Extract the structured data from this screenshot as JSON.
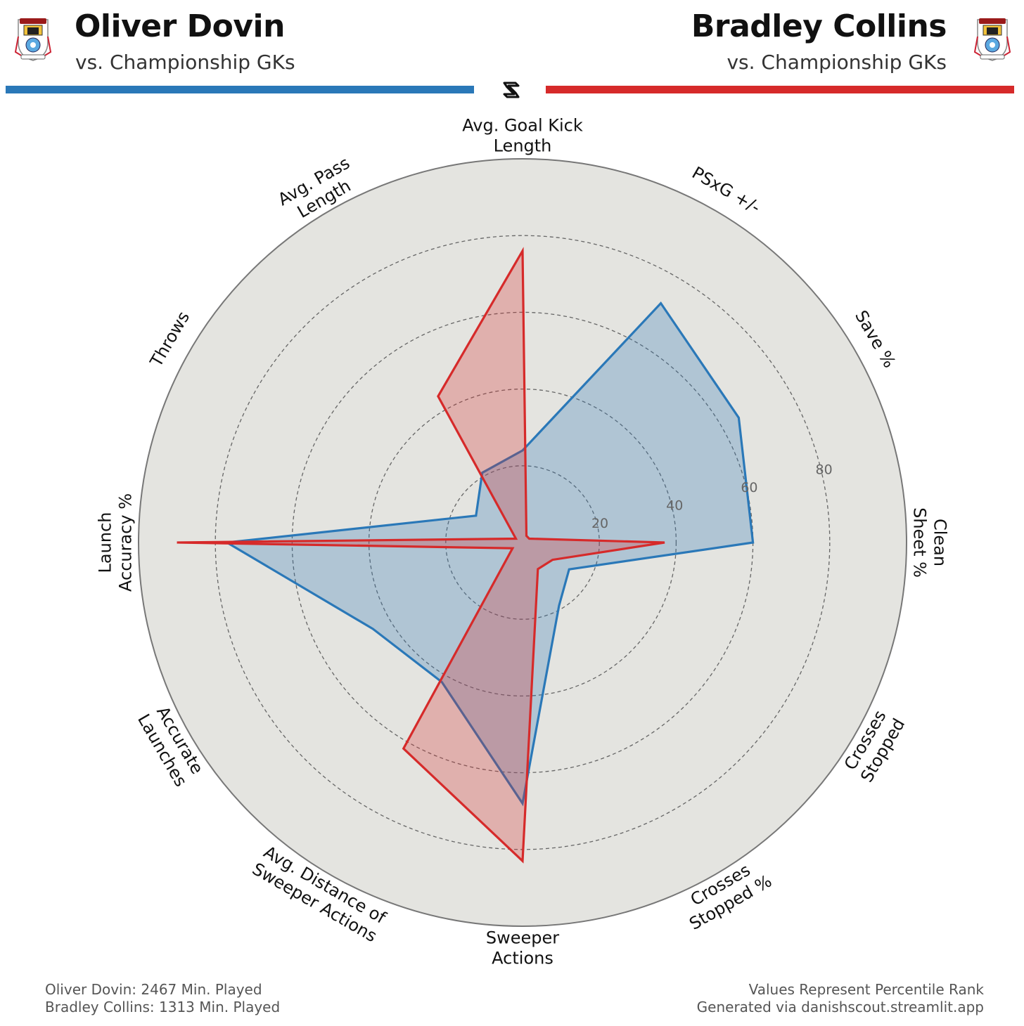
{
  "header": {
    "left_player": "Oliver Dovin",
    "left_subtitle": "vs. Championship GKs",
    "right_player": "Bradley Collins",
    "right_subtitle": "vs. Championship GKs",
    "left_color": "#2a78b8",
    "right_color": "#d62a2a"
  },
  "footer": {
    "left_line1": "Oliver Dovin: 2467 Min. Played",
    "left_line2": "Bradley Collins: 1313 Min. Played",
    "right_line1": "Values Represent Percentile Rank",
    "right_line2": "Generated via danishscout.streamlit.app"
  },
  "chart_data": {
    "type": "radar",
    "axes": [
      [
        "Avg. Goal Kick",
        "Length"
      ],
      [
        "PSxG +/-"
      ],
      [
        "Save %"
      ],
      [
        "Clean",
        "Sheet %"
      ],
      [
        "Crosses",
        "Stopped"
      ],
      [
        "Crosses",
        "Stopped %"
      ],
      [
        "Sweeper",
        "Actions"
      ],
      [
        "Avg. Distance of",
        "Sweeper Actions"
      ],
      [
        "Accurate",
        "Launches"
      ],
      [
        "Launch",
        "Accuracy %"
      ],
      [
        "Throws"
      ],
      [
        "Avg. Pass",
        "Length"
      ]
    ],
    "rlim": [
      0,
      100
    ],
    "ticks": [
      20,
      40,
      60,
      80
    ],
    "series": [
      {
        "name": "Oliver Dovin",
        "color": "#2a78b8",
        "values": [
          24,
          72,
          65,
          60,
          14,
          19,
          68,
          42,
          45,
          77,
          14,
          21
        ]
      },
      {
        "name": "Bradley Collins",
        "color": "#d62a2a",
        "values": [
          76,
          2,
          2,
          37,
          9,
          8,
          83,
          62,
          3,
          90,
          2,
          44
        ]
      }
    ],
    "background_color": "#e4e4e0",
    "grid": true
  }
}
